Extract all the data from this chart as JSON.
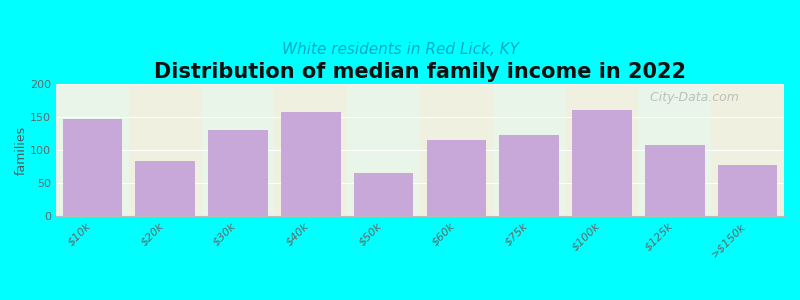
{
  "title": "Distribution of median family income in 2022",
  "subtitle": "White residents in Red Lick, KY",
  "ylabel": "families",
  "categories": [
    "$10k",
    "$20k",
    "$30k",
    "$40k",
    "$50k",
    "$60k",
    "$75k",
    "$100k",
    "$125k",
    ">$150k"
  ],
  "values": [
    147,
    84,
    130,
    158,
    65,
    115,
    123,
    160,
    108,
    78
  ],
  "bar_color": "#c8a8d8",
  "background_color": "#00ffff",
  "plot_bg_colors": [
    "#e8f5e8",
    "#f0f0e0",
    "#e8f5e8",
    "#f0f0e0",
    "#e8f5e8",
    "#f0f0e0",
    "#e8f5e8",
    "#f0f0e0",
    "#e8f5e8",
    "#f0f0e0"
  ],
  "ylim": [
    0,
    200
  ],
  "yticks": [
    0,
    50,
    100,
    150,
    200
  ],
  "title_fontsize": 15,
  "subtitle_fontsize": 11,
  "subtitle_color": "#00aacc",
  "ylabel_fontsize": 9,
  "watermark": " City-Data.com"
}
